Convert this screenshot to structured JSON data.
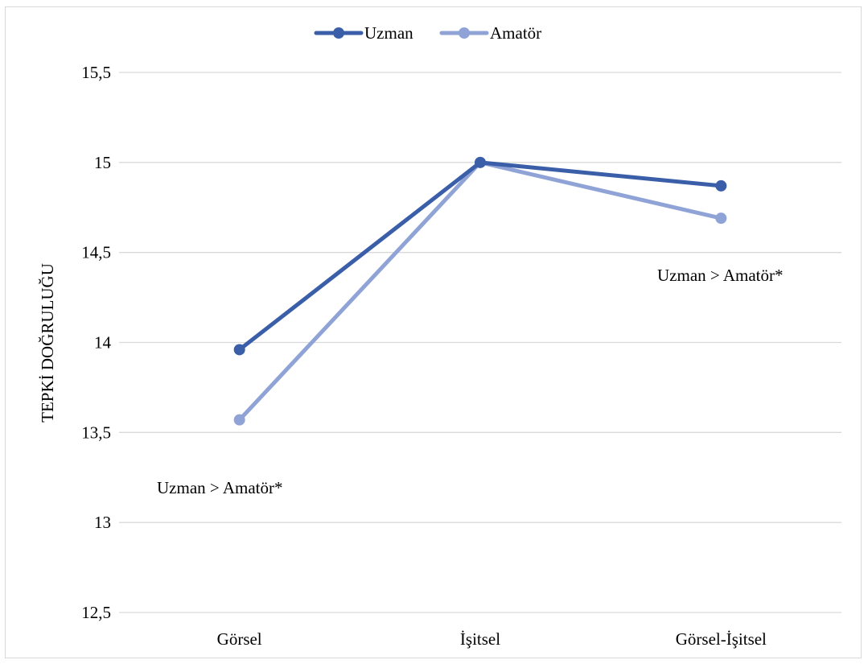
{
  "chart_data": {
    "type": "line",
    "categories": [
      "Görsel",
      "İşitsel",
      "Görsel-İşitsel"
    ],
    "series": [
      {
        "name": "Uzman",
        "values": [
          13.96,
          15.0,
          14.87
        ],
        "color": "#3a5fa8"
      },
      {
        "name": "Amatör",
        "values": [
          13.57,
          15.0,
          14.69
        ],
        "color": "#8fa3d6"
      }
    ],
    "ylabel": "TEPKİ DOĞRULUĞU",
    "ylim": [
      12.5,
      15.5
    ],
    "yticks": [
      12.5,
      13,
      13.5,
      14,
      14.5,
      15,
      15.5
    ],
    "ytick_labels": [
      "12,5",
      "13",
      "13,5",
      "14",
      "14,5",
      "15",
      "15,5"
    ],
    "grid": true,
    "legend_position": "top-center",
    "annotations": [
      {
        "text": "Uzman > Amatör*",
        "near_category": "Görsel"
      },
      {
        "text": "Uzman > Amatör*",
        "near_category": "Görsel-İşitsel"
      }
    ]
  }
}
